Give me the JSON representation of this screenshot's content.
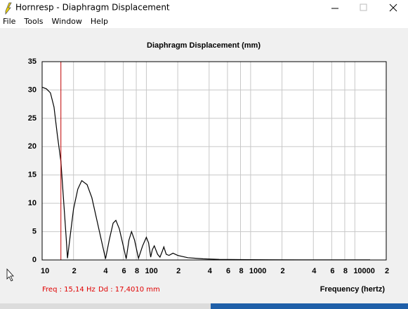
{
  "window": {
    "title": "Hornresp - Diaphragm Displacement",
    "menu": [
      "File",
      "Tools",
      "Window",
      "Help"
    ]
  },
  "chart_data": {
    "type": "line",
    "title": "Diaphragm Displacement (mm)",
    "x_label": "Frequency (hertz)",
    "x_scale": "log",
    "grid": true,
    "color": "#000000",
    "cursor_color": "#c00000",
    "cursor_x": 15.14,
    "xlim": [
      10,
      20000
    ],
    "ylim": [
      0,
      35
    ],
    "xticks": [
      10,
      {
        "value": 20,
        "label": "2"
      },
      {
        "value": 40,
        "label": "4"
      },
      {
        "value": 60,
        "label": "6"
      },
      {
        "value": 80,
        "label": "8"
      },
      100,
      {
        "value": 200,
        "label": "2"
      },
      {
        "value": 400,
        "label": "4"
      },
      {
        "value": 600,
        "label": "6"
      },
      {
        "value": 800,
        "label": "8"
      },
      1000,
      {
        "value": 2000,
        "label": "2"
      },
      {
        "value": 4000,
        "label": "4"
      },
      {
        "value": 6000,
        "label": "6"
      },
      {
        "value": 8000,
        "label": "8"
      },
      10000,
      {
        "value": 20000,
        "label": "2"
      }
    ],
    "yticks": [
      0,
      5,
      10,
      15,
      20,
      25,
      30,
      35
    ],
    "x": [
      10,
      11,
      12,
      13,
      14,
      15.14,
      16,
      17,
      17.5,
      18.5,
      20,
      22,
      24,
      27,
      30,
      34,
      38,
      40.6,
      44,
      48,
      51,
      55,
      60,
      64,
      68,
      72,
      77,
      84,
      92,
      100,
      105,
      110,
      114,
      119,
      128,
      135,
      142,
      147,
      155,
      165,
      180,
      200,
      250,
      350,
      500,
      1000,
      3000,
      10000,
      14000
    ],
    "values": [
      30.5,
      30.2,
      29.5,
      27,
      22,
      17.4,
      11,
      4,
      0.3,
      4,
      9,
      12.5,
      14,
      13.3,
      11,
      6.5,
      2.5,
      0.2,
      3.5,
      6.5,
      7,
      5.5,
      2.5,
      0.2,
      3.5,
      5,
      3.5,
      0.3,
      2.5,
      4,
      3,
      0.5,
      1.8,
      2.5,
      1,
      0.5,
      1.5,
      2.3,
      1,
      0.8,
      1.2,
      0.8,
      0.4,
      0.2,
      0.1,
      0.05,
      0.02,
      0.01,
      0.01
    ]
  },
  "status": {
    "freq": "Freq : 15,14 Hz",
    "dd": "Dd : 17,4010 mm"
  }
}
